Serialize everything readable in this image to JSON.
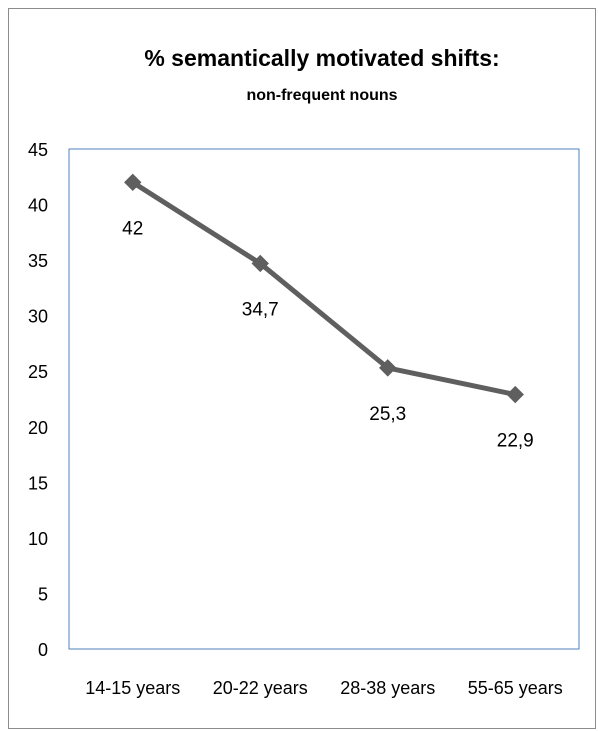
{
  "chart_data": {
    "type": "line",
    "title": "% semantically motivated shifts:",
    "subtitle": "non-frequent nouns",
    "xlabel": "",
    "ylabel": "",
    "categories": [
      "14-15 years",
      "20-22 years",
      "28-38 years",
      "55-65 years"
    ],
    "series": [
      {
        "values": [
          42,
          34.7,
          25.3,
          22.9
        ],
        "data_labels": [
          "42",
          "34,7",
          "25,3",
          "22,9"
        ]
      }
    ],
    "ylim": [
      0,
      45
    ],
    "y_ticks": [
      0,
      5,
      10,
      15,
      20,
      25,
      30,
      35,
      40,
      45
    ],
    "grid": false,
    "legend": "none",
    "marker": "diamond",
    "colors": {
      "series_line": "#5f5f5f",
      "marker": "#5f5f5f",
      "plot_border": "#4f81bd",
      "frame_border": "#8c8c8c"
    }
  }
}
